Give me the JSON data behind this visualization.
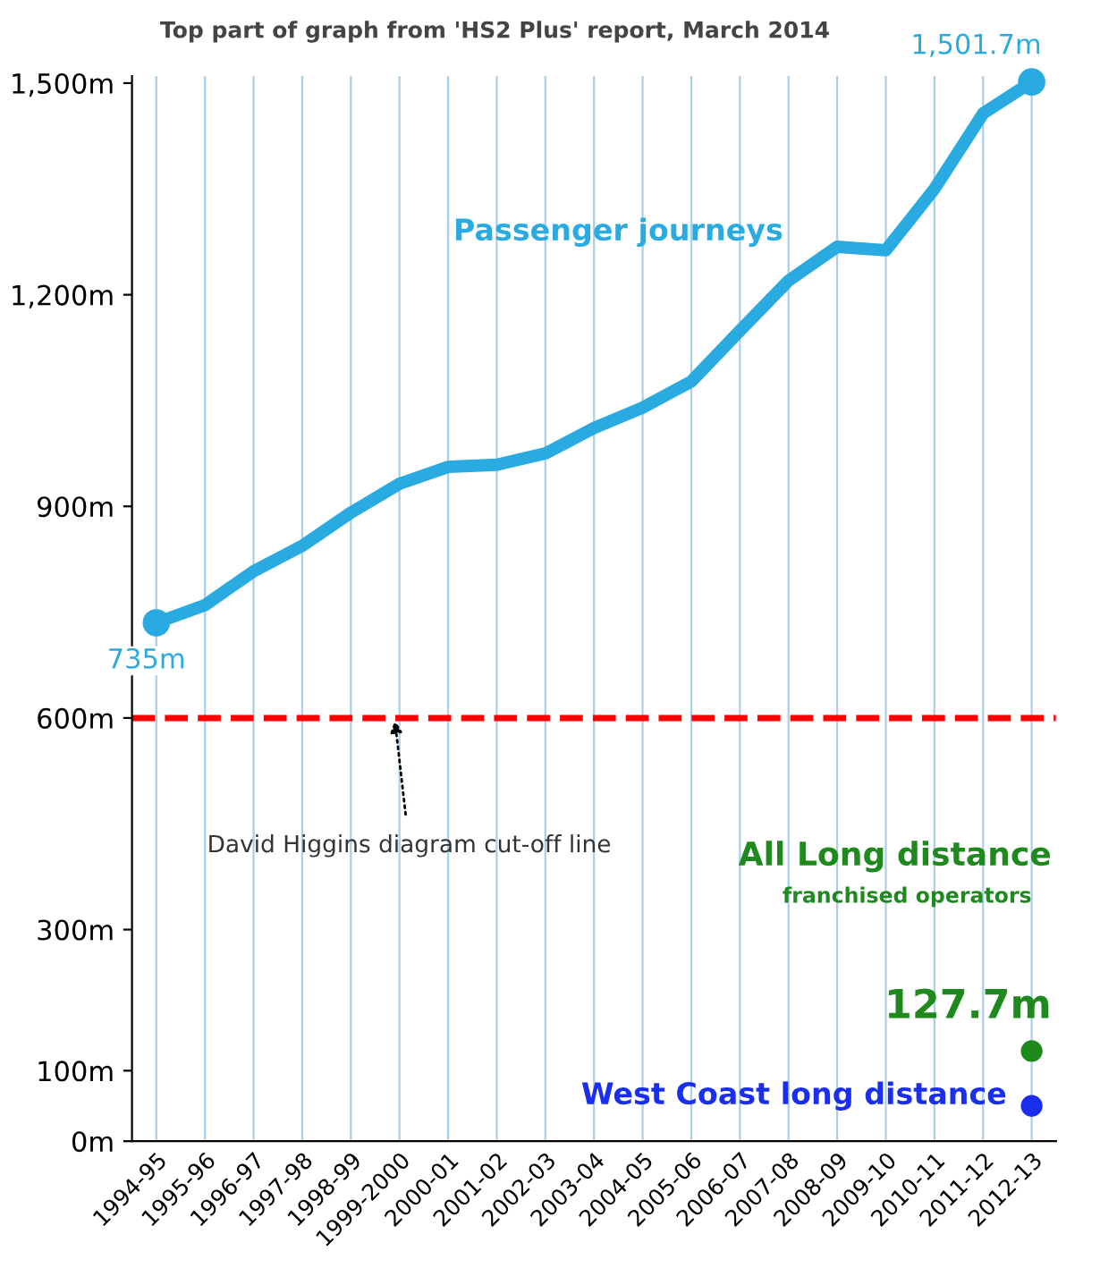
{
  "chart_data": {
    "type": "line",
    "title": "Top part of graph from 'HS2 Plus' report, March 2014",
    "categories": [
      "1994-95",
      "1995-96",
      "1996-97",
      "1997-98",
      "1998-99",
      "1999-2000",
      "2000-01",
      "2001-02",
      "2002-03",
      "2003-04",
      "2004-05",
      "2005-06",
      "2006-07",
      "2007-08",
      "2008-09",
      "2009-10",
      "2010-11",
      "2011-12",
      "2012-13"
    ],
    "series": [
      {
        "name": "Passenger journeys",
        "color": "#29abe2",
        "values": [
          735,
          760,
          808,
          844,
          891,
          932,
          956,
          959,
          975,
          1011,
          1040,
          1077,
          1149,
          1220,
          1268,
          1263,
          1350,
          1457,
          1501.7
        ],
        "value_labels": [
          "735m",
          null,
          null,
          null,
          null,
          null,
          null,
          null,
          null,
          null,
          null,
          null,
          null,
          null,
          null,
          null,
          null,
          null,
          "1,501.7m"
        ]
      },
      {
        "name": "All Long distance\nfranchised operators",
        "type": "scatter",
        "color": "#1e8a1e",
        "values": [
          null,
          null,
          null,
          null,
          null,
          null,
          null,
          null,
          null,
          null,
          null,
          null,
          null,
          null,
          null,
          null,
          null,
          null,
          127.7
        ],
        "value_labels": [
          null,
          null,
          null,
          null,
          null,
          null,
          null,
          null,
          null,
          null,
          null,
          null,
          null,
          null,
          null,
          null,
          null,
          null,
          "127.7m"
        ]
      },
      {
        "name": "West Coast long distance",
        "type": "scatter",
        "color": "#1a2ef0",
        "values": [
          null,
          null,
          null,
          null,
          null,
          null,
          null,
          null,
          null,
          null,
          null,
          null,
          null,
          null,
          null,
          null,
          null,
          null,
          50
        ]
      }
    ],
    "ylim": [
      0,
      1510
    ],
    "yticks": [
      {
        "value": 0,
        "label": "0m"
      },
      {
        "value": 100,
        "label": "100m"
      },
      {
        "value": 300,
        "label": "300m"
      },
      {
        "value": 600,
        "label": "600m"
      },
      {
        "value": 900,
        "label": "900m"
      },
      {
        "value": 1200,
        "label": "1,200m"
      },
      {
        "value": 1500,
        "label": "1,500m"
      }
    ],
    "ref_lines": [
      {
        "axis": "y",
        "value": 600,
        "label": "David Higgins diagram cut-off line",
        "color": "#ff0000",
        "line_style": "dashed"
      }
    ],
    "grid": "x",
    "line_style": "solid"
  }
}
